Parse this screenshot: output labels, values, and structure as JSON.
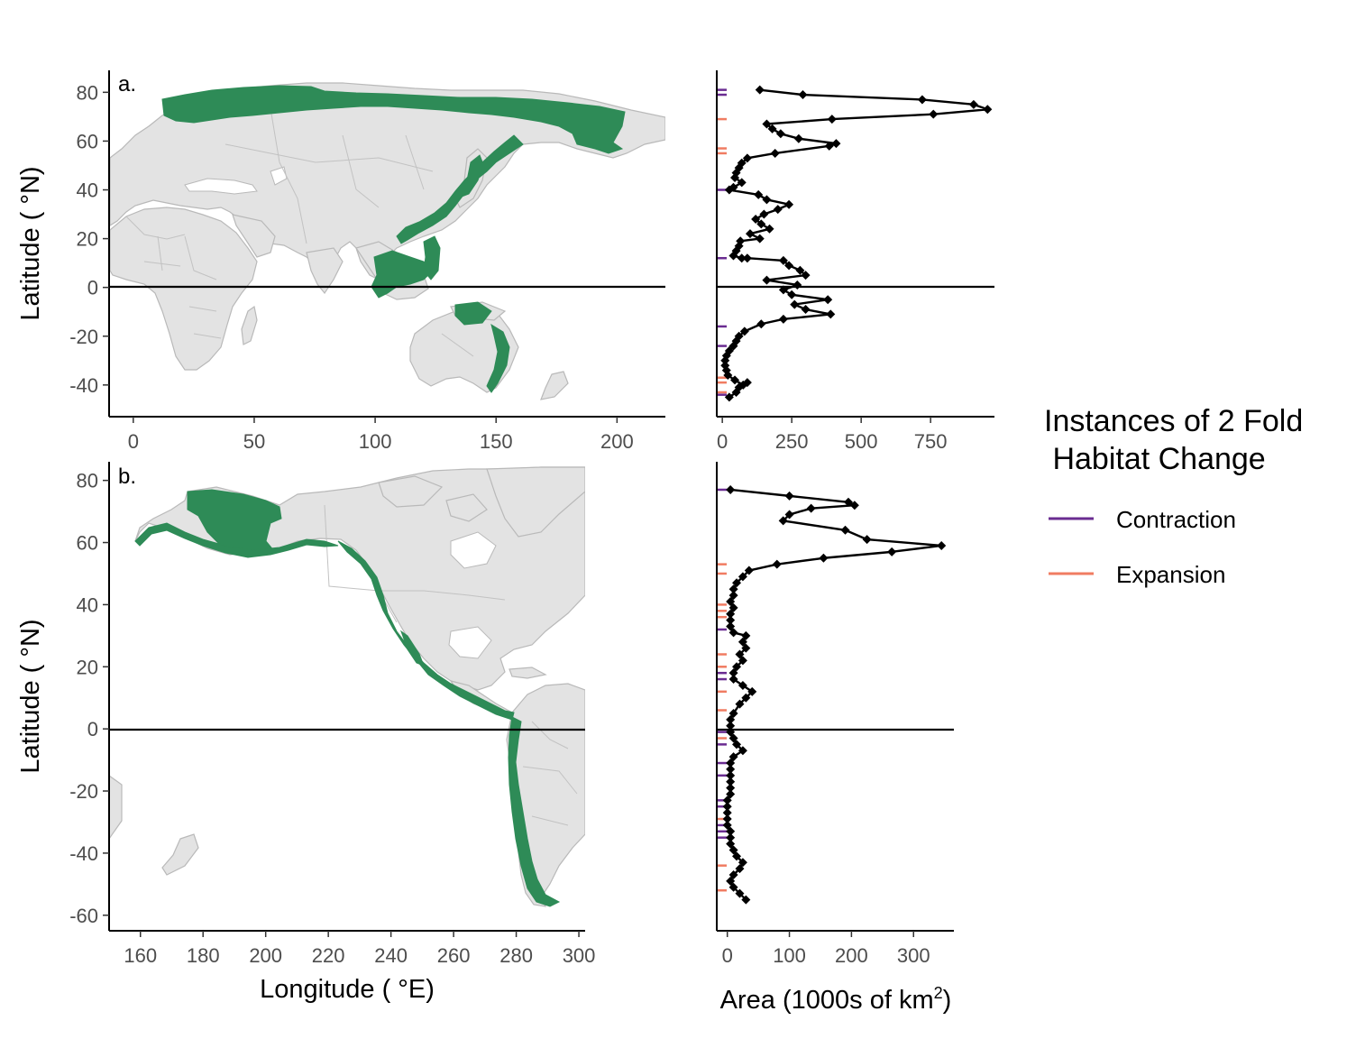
{
  "chart_data": [
    {
      "panel": "a.",
      "type": "map",
      "xlabel": "",
      "ylabel": "Latitude ( °N)",
      "xlim": [
        -10,
        220
      ],
      "ylim": [
        -53,
        89
      ],
      "xticks": [
        0,
        50,
        100,
        150,
        200
      ],
      "yticks": [
        -40,
        -20,
        0,
        20,
        40,
        60,
        80
      ],
      "equator_line": 0,
      "colors": {
        "land": "#e3e3e3",
        "border": "#b9b9b9",
        "habitat": "#2e8b57"
      }
    },
    {
      "panel": "a-profile",
      "type": "line",
      "xlabel": "",
      "xlim": [
        -20,
        980
      ],
      "ylim": [
        -53,
        89
      ],
      "xticks": [
        0,
        250,
        500,
        750
      ],
      "points": [
        [
          135,
          81
        ],
        [
          290,
          79
        ],
        [
          720,
          77
        ],
        [
          905,
          75
        ],
        [
          955,
          73
        ],
        [
          760,
          71
        ],
        [
          395,
          69
        ],
        [
          160,
          67
        ],
        [
          180,
          65
        ],
        [
          210,
          63
        ],
        [
          275,
          61
        ],
        [
          410,
          59
        ],
        [
          385,
          58
        ],
        [
          190,
          55
        ],
        [
          90,
          53
        ],
        [
          70,
          51
        ],
        [
          60,
          49
        ],
        [
          50,
          47
        ],
        [
          45,
          45
        ],
        [
          70,
          43
        ],
        [
          40,
          41
        ],
        [
          25,
          40
        ],
        [
          130,
          38
        ],
        [
          160,
          36
        ],
        [
          240,
          34
        ],
        [
          200,
          32
        ],
        [
          150,
          30
        ],
        [
          120,
          28
        ],
        [
          140,
          26
        ],
        [
          170,
          24
        ],
        [
          100,
          22
        ],
        [
          135,
          20
        ],
        [
          65,
          19
        ],
        [
          60,
          17
        ],
        [
          50,
          15
        ],
        [
          40,
          13
        ],
        [
          70,
          12
        ],
        [
          90,
          12
        ],
        [
          220,
          11
        ],
        [
          240,
          9
        ],
        [
          280,
          7
        ],
        [
          300,
          5
        ],
        [
          160,
          3
        ],
        [
          270,
          1
        ],
        [
          220,
          -1
        ],
        [
          250,
          -3
        ],
        [
          380,
          -5
        ],
        [
          260,
          -7
        ],
        [
          300,
          -9
        ],
        [
          390,
          -11
        ],
        [
          220,
          -13
        ],
        [
          140,
          -15
        ],
        [
          80,
          -18
        ],
        [
          60,
          -20
        ],
        [
          50,
          -22
        ],
        [
          40,
          -24
        ],
        [
          25,
          -26
        ],
        [
          15,
          -28
        ],
        [
          10,
          -30
        ],
        [
          10,
          -32
        ],
        [
          15,
          -34
        ],
        [
          20,
          -36
        ],
        [
          45,
          -38
        ],
        [
          75,
          -40
        ],
        [
          90,
          -39
        ],
        [
          60,
          -41
        ],
        [
          50,
          -43
        ],
        [
          25,
          -45
        ]
      ],
      "contraction_lats": [
        81,
        79,
        40,
        12,
        -16,
        -24,
        -44
      ],
      "expansion_lats": [
        69,
        57,
        55,
        -37,
        -39,
        -43
      ],
      "colors": {
        "line": "#000000",
        "contraction": "#6a2c91",
        "expansion": "#f07c62"
      }
    },
    {
      "panel": "b.",
      "type": "map",
      "xlabel": "Longitude ( °E)",
      "ylabel": "Latitude ( °N)",
      "xlim": [
        150,
        302
      ],
      "ylim": [
        -65,
        86
      ],
      "xticks": [
        160,
        180,
        200,
        220,
        240,
        260,
        280,
        300
      ],
      "yticks": [
        -60,
        -40,
        -20,
        0,
        20,
        40,
        60,
        80
      ],
      "equator_line": 0,
      "colors": {
        "land": "#e3e3e3",
        "border": "#b9b9b9",
        "habitat": "#2e8b57"
      }
    },
    {
      "panel": "b-profile",
      "type": "line",
      "xlabel": "Area (1000s of km",
      "xlabel_sup": "2",
      "xlabel_end": ")",
      "xlim": [
        -17,
        365
      ],
      "ylim": [
        -65,
        86
      ],
      "xticks": [
        0,
        100,
        200,
        300
      ],
      "points": [
        [
          5,
          77
        ],
        [
          100,
          75
        ],
        [
          195,
          73
        ],
        [
          205,
          72
        ],
        [
          135,
          71
        ],
        [
          100,
          69
        ],
        [
          90,
          67
        ],
        [
          190,
          64
        ],
        [
          225,
          61
        ],
        [
          345,
          59
        ],
        [
          265,
          57
        ],
        [
          155,
          55
        ],
        [
          80,
          53
        ],
        [
          35,
          51
        ],
        [
          25,
          49
        ],
        [
          15,
          47
        ],
        [
          10,
          45
        ],
        [
          10,
          43
        ],
        [
          5,
          41
        ],
        [
          10,
          39
        ],
        [
          5,
          37
        ],
        [
          5,
          35
        ],
        [
          5,
          33
        ],
        [
          10,
          31
        ],
        [
          30,
          30
        ],
        [
          25,
          28
        ],
        [
          30,
          26
        ],
        [
          20,
          24
        ],
        [
          25,
          22
        ],
        [
          15,
          20
        ],
        [
          10,
          18
        ],
        [
          10,
          16
        ],
        [
          25,
          14
        ],
        [
          40,
          12
        ],
        [
          30,
          10
        ],
        [
          20,
          8
        ],
        [
          10,
          5
        ],
        [
          5,
          3
        ],
        [
          5,
          1
        ],
        [
          5,
          -1
        ],
        [
          10,
          -3
        ],
        [
          15,
          -5
        ],
        [
          25,
          -7
        ],
        [
          10,
          -9
        ],
        [
          5,
          -11
        ],
        [
          5,
          -13
        ],
        [
          5,
          -15
        ],
        [
          5,
          -17
        ],
        [
          5,
          -19
        ],
        [
          5,
          -21
        ],
        [
          0,
          -23
        ],
        [
          0,
          -25
        ],
        [
          0,
          -27
        ],
        [
          0,
          -29
        ],
        [
          0,
          -31
        ],
        [
          5,
          -33
        ],
        [
          5,
          -35
        ],
        [
          5,
          -37
        ],
        [
          10,
          -39
        ],
        [
          15,
          -41
        ],
        [
          25,
          -43
        ],
        [
          20,
          -45
        ],
        [
          10,
          -47
        ],
        [
          5,
          -49
        ],
        [
          10,
          -51
        ],
        [
          20,
          -53
        ],
        [
          30,
          -55
        ]
      ],
      "contraction_lats": [
        77,
        32,
        18,
        16,
        -1,
        -5,
        -11,
        -15,
        -23,
        -25,
        -31,
        -33,
        -35
      ],
      "expansion_lats": [
        53,
        50,
        40,
        38,
        36,
        24,
        20,
        12,
        6,
        -3,
        -29,
        -44,
        -52
      ],
      "colors": {
        "line": "#000000",
        "contraction": "#6a2c91",
        "expansion": "#f07c62"
      }
    }
  ],
  "panel_tags": {
    "a": "a.",
    "b": "b."
  },
  "axis_titles": {
    "latitude_a": "Latitude ( °N)",
    "latitude_b": "Latitude ( °N)",
    "longitude": "Longitude ( °E)"
  },
  "legend": {
    "title_line1": "Instances of 2 Fold",
    "title_line2": " Habitat Change",
    "items": [
      {
        "label": "Contraction",
        "color": "#6a2c91"
      },
      {
        "label": "Expansion",
        "color": "#f07c62"
      }
    ]
  }
}
